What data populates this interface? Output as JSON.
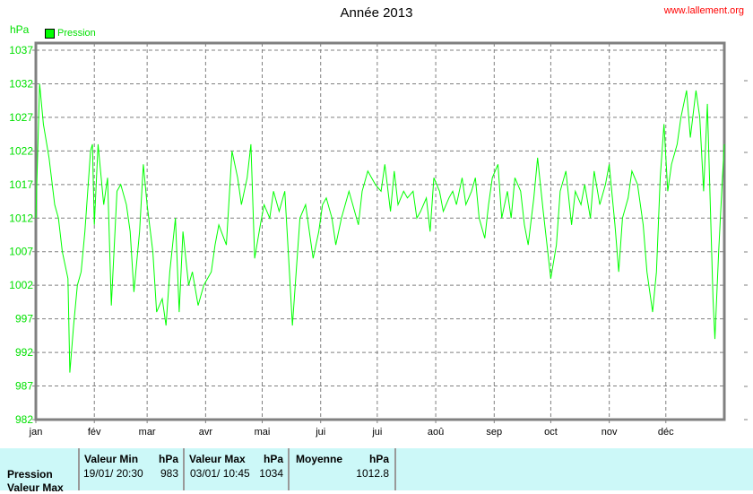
{
  "header": {
    "title": "Année 2013",
    "site": "www.lallement.org",
    "unit": "hPa",
    "legend": "Pression"
  },
  "colors": {
    "series": "#00ff00",
    "axis_text": "#00e000",
    "grid": "#808080"
  },
  "chart_data": {
    "type": "line",
    "title": "Année 2013",
    "ylabel": "hPa",
    "ylim": [
      982,
      1037
    ],
    "yticks": [
      982,
      987,
      992,
      997,
      1002,
      1007,
      1012,
      1017,
      1022,
      1027,
      1032,
      1037
    ],
    "xticks": [
      "jan",
      "fév",
      "mar",
      "avr",
      "mai",
      "jui",
      "jui",
      "aoû",
      "sep",
      "oct",
      "nov",
      "déc"
    ],
    "xtick_days": [
      0,
      31,
      59,
      90,
      120,
      151,
      181,
      212,
      243,
      273,
      304,
      334
    ],
    "xlim": [
      0,
      365
    ],
    "grid": true,
    "legend_position": "top-left",
    "series": [
      {
        "name": "Pression",
        "points": [
          [
            0,
            1012
          ],
          [
            2,
            1032
          ],
          [
            4,
            1026
          ],
          [
            7,
            1021
          ],
          [
            10,
            1014
          ],
          [
            12,
            1012
          ],
          [
            14,
            1007
          ],
          [
            17,
            1003
          ],
          [
            18,
            989
          ],
          [
            20,
            996
          ],
          [
            22,
            1002
          ],
          [
            24,
            1004
          ],
          [
            26,
            1010
          ],
          [
            29,
            1022
          ],
          [
            30,
            1023
          ],
          [
            31,
            1011
          ],
          [
            33,
            1023
          ],
          [
            36,
            1014
          ],
          [
            38,
            1018
          ],
          [
            40,
            999
          ],
          [
            43,
            1016
          ],
          [
            45,
            1017
          ],
          [
            48,
            1014
          ],
          [
            50,
            1010
          ],
          [
            52,
            1001
          ],
          [
            55,
            1010
          ],
          [
            57,
            1020
          ],
          [
            59,
            1014
          ],
          [
            62,
            1007
          ],
          [
            64,
            998
          ],
          [
            67,
            1000
          ],
          [
            69,
            996
          ],
          [
            71,
            1004
          ],
          [
            74,
            1012
          ],
          [
            76,
            998
          ],
          [
            78,
            1010
          ],
          [
            81,
            1002
          ],
          [
            83,
            1004
          ],
          [
            86,
            999
          ],
          [
            89,
            1002
          ],
          [
            93,
            1004
          ],
          [
            95,
            1008
          ],
          [
            97,
            1011
          ],
          [
            101,
            1008
          ],
          [
            104,
            1022
          ],
          [
            107,
            1018
          ],
          [
            109,
            1014
          ],
          [
            112,
            1018
          ],
          [
            114,
            1023
          ],
          [
            116,
            1006
          ],
          [
            119,
            1011
          ],
          [
            121,
            1014
          ],
          [
            124,
            1012
          ],
          [
            126,
            1016
          ],
          [
            129,
            1013
          ],
          [
            132,
            1016
          ],
          [
            134,
            1006
          ],
          [
            136,
            996
          ],
          [
            138,
            1004
          ],
          [
            140,
            1012
          ],
          [
            143,
            1014
          ],
          [
            145,
            1010
          ],
          [
            147,
            1006
          ],
          [
            150,
            1010
          ],
          [
            152,
            1014
          ],
          [
            154,
            1015
          ],
          [
            157,
            1012
          ],
          [
            159,
            1008
          ],
          [
            162,
            1012
          ],
          [
            164,
            1014
          ],
          [
            166,
            1016
          ],
          [
            169,
            1013
          ],
          [
            171,
            1011
          ],
          [
            173,
            1016
          ],
          [
            176,
            1019
          ],
          [
            180,
            1017
          ],
          [
            183,
            1016
          ],
          [
            185,
            1020
          ],
          [
            188,
            1013
          ],
          [
            190,
            1019
          ],
          [
            192,
            1014
          ],
          [
            195,
            1016
          ],
          [
            197,
            1015
          ],
          [
            200,
            1016
          ],
          [
            202,
            1012
          ],
          [
            204,
            1013
          ],
          [
            207,
            1015
          ],
          [
            209,
            1010
          ],
          [
            211,
            1018
          ],
          [
            214,
            1016
          ],
          [
            216,
            1013
          ],
          [
            219,
            1015
          ],
          [
            221,
            1016
          ],
          [
            223,
            1014
          ],
          [
            226,
            1018
          ],
          [
            228,
            1014
          ],
          [
            231,
            1016
          ],
          [
            233,
            1018
          ],
          [
            235,
            1012
          ],
          [
            238,
            1009
          ],
          [
            240,
            1014
          ],
          [
            242,
            1018
          ],
          [
            245,
            1020
          ],
          [
            247,
            1012
          ],
          [
            250,
            1016
          ],
          [
            252,
            1012
          ],
          [
            254,
            1018
          ],
          [
            257,
            1016
          ],
          [
            259,
            1011
          ],
          [
            261,
            1008
          ],
          [
            264,
            1015
          ],
          [
            266,
            1021
          ],
          [
            269,
            1013
          ],
          [
            271,
            1008
          ],
          [
            273,
            1003
          ],
          [
            276,
            1008
          ],
          [
            278,
            1016
          ],
          [
            281,
            1019
          ],
          [
            284,
            1011
          ],
          [
            286,
            1016
          ],
          [
            289,
            1014
          ],
          [
            291,
            1017
          ],
          [
            294,
            1012
          ],
          [
            296,
            1019
          ],
          [
            299,
            1014
          ],
          [
            302,
            1017
          ],
          [
            304,
            1020
          ],
          [
            307,
            1011
          ],
          [
            309,
            1004
          ],
          [
            311,
            1012
          ],
          [
            314,
            1015
          ],
          [
            316,
            1019
          ],
          [
            319,
            1017
          ],
          [
            322,
            1011
          ],
          [
            324,
            1004
          ],
          [
            327,
            998
          ],
          [
            329,
            1004
          ],
          [
            331,
            1018
          ],
          [
            333,
            1026
          ],
          [
            335,
            1016
          ],
          [
            337,
            1020
          ],
          [
            340,
            1023
          ],
          [
            342,
            1027
          ],
          [
            345,
            1031
          ],
          [
            347,
            1024
          ],
          [
            350,
            1031
          ],
          [
            352,
            1027
          ],
          [
            354,
            1016
          ],
          [
            356,
            1029
          ],
          [
            359,
            1000
          ],
          [
            360,
            994
          ],
          [
            362,
            1007
          ],
          [
            364,
            1018
          ],
          [
            365,
            1023
          ]
        ]
      }
    ]
  },
  "table": {
    "row_labels": [
      "Pression",
      "Valeur Max"
    ],
    "columns": [
      {
        "header": "Valeur Min",
        "unit": "hPa",
        "date": "19/01/  20:30",
        "value": "983"
      },
      {
        "header": "Valeur Max",
        "unit": "hPa",
        "date": "03/01/  10:45",
        "value": "1034"
      },
      {
        "header": "Moyenne",
        "unit": "hPa",
        "date": "",
        "value": "1012.8"
      }
    ]
  }
}
